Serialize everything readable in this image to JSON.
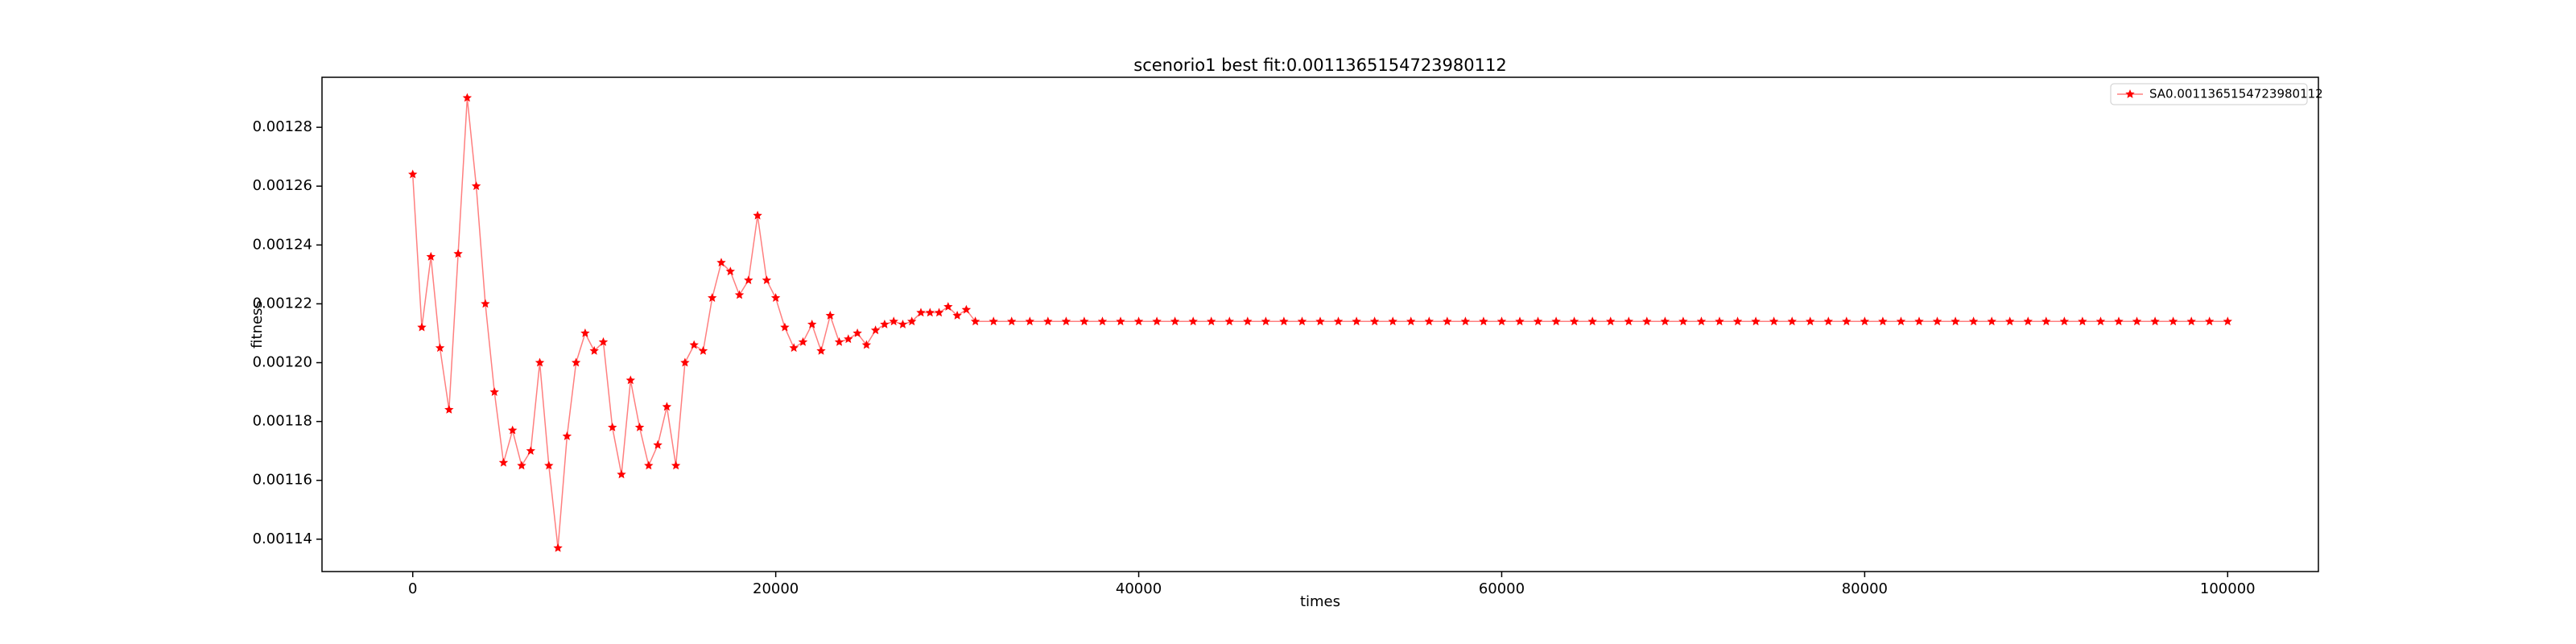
{
  "chart_data": {
    "type": "line",
    "title": "scenorio1 best fit:0.0011365154723980112",
    "x_label": "times",
    "y_label": "fitness",
    "x": [
      0,
      500,
      1000,
      1500,
      2000,
      2500,
      3000,
      3500,
      4000,
      4500,
      5000,
      5500,
      6000,
      6500,
      7000,
      7500,
      8000,
      8500,
      9000,
      9500,
      10000,
      10500,
      11000,
      11500,
      12000,
      12500,
      13000,
      13500,
      14000,
      14500,
      15000,
      15500,
      16000,
      16500,
      17000,
      17500,
      18000,
      18500,
      19000,
      19500,
      20000,
      20500,
      21000,
      21500,
      22000,
      22500,
      23000,
      23500,
      24000,
      24500,
      25000,
      25500,
      26000,
      26500,
      27000,
      27500,
      28000,
      28500,
      29000,
      29500,
      30000,
      30500,
      31000,
      32000,
      33000,
      34000,
      35000,
      36000,
      37000,
      38000,
      39000,
      40000,
      41000,
      42000,
      43000,
      44000,
      45000,
      46000,
      47000,
      48000,
      49000,
      50000,
      51000,
      52000,
      53000,
      54000,
      55000,
      56000,
      57000,
      58000,
      59000,
      60000,
      61000,
      62000,
      63000,
      64000,
      65000,
      66000,
      67000,
      68000,
      69000,
      70000,
      71000,
      72000,
      73000,
      74000,
      75000,
      76000,
      77000,
      78000,
      79000,
      80000,
      81000,
      82000,
      83000,
      84000,
      85000,
      86000,
      87000,
      88000,
      89000,
      90000,
      91000,
      92000,
      93000,
      94000,
      95000,
      96000,
      97000,
      98000,
      99000,
      100000
    ],
    "series": [
      {
        "name": "SA0.0011365154723980112",
        "color": "#ff0000",
        "values": [
          0.001264,
          0.001212,
          0.001236,
          0.001205,
          0.001184,
          0.001237,
          0.00129,
          0.00126,
          0.00122,
          0.00119,
          0.001166,
          0.001177,
          0.001165,
          0.00117,
          0.0012,
          0.001165,
          0.001137,
          0.001175,
          0.0012,
          0.00121,
          0.001204,
          0.001207,
          0.001178,
          0.001162,
          0.001194,
          0.001178,
          0.001165,
          0.001172,
          0.001185,
          0.001165,
          0.0012,
          0.001206,
          0.001204,
          0.001222,
          0.001234,
          0.001231,
          0.001223,
          0.001228,
          0.00125,
          0.001228,
          0.001222,
          0.001212,
          0.001205,
          0.001207,
          0.001213,
          0.001204,
          0.001216,
          0.001207,
          0.001208,
          0.00121,
          0.001206,
          0.001211,
          0.001213,
          0.001214,
          0.001213,
          0.001214,
          0.001217,
          0.001217,
          0.001217,
          0.001219,
          0.001216,
          0.001218,
          0.001214,
          0.001214,
          0.001214,
          0.001214,
          0.001214,
          0.001214,
          0.001214,
          0.001214,
          0.001214,
          0.001214,
          0.001214,
          0.001214,
          0.001214,
          0.001214,
          0.001214,
          0.001214,
          0.001214,
          0.001214,
          0.001214,
          0.001214,
          0.001214,
          0.001214,
          0.001214,
          0.001214,
          0.001214,
          0.001214,
          0.001214,
          0.001214,
          0.001214,
          0.001214,
          0.001214,
          0.001214,
          0.001214,
          0.001214,
          0.001214,
          0.001214,
          0.001214,
          0.001214,
          0.001214,
          0.001214,
          0.001214,
          0.001214,
          0.001214,
          0.001214,
          0.001214,
          0.001214,
          0.001214,
          0.001214,
          0.001214,
          0.001214,
          0.001214,
          0.001214,
          0.001214,
          0.001214,
          0.001214,
          0.001214,
          0.001214,
          0.001214,
          0.001214,
          0.001214,
          0.001214,
          0.001214,
          0.001214,
          0.001214,
          0.001214,
          0.001214,
          0.001214,
          0.001214,
          0.001214,
          0.001214
        ]
      }
    ],
    "xlim": [
      -5000,
      105000
    ],
    "xticks": [
      0,
      20000,
      40000,
      60000,
      80000,
      100000
    ],
    "ylim": [
      0.001129,
      0.001297
    ],
    "yticks": [
      0.00114,
      0.00116,
      0.00118,
      {
        "value": 0.0012,
        "label": "0.00120"
      },
      0.00122,
      0.00124,
      0.00126,
      0.00128
    ],
    "legend": "upper right"
  }
}
